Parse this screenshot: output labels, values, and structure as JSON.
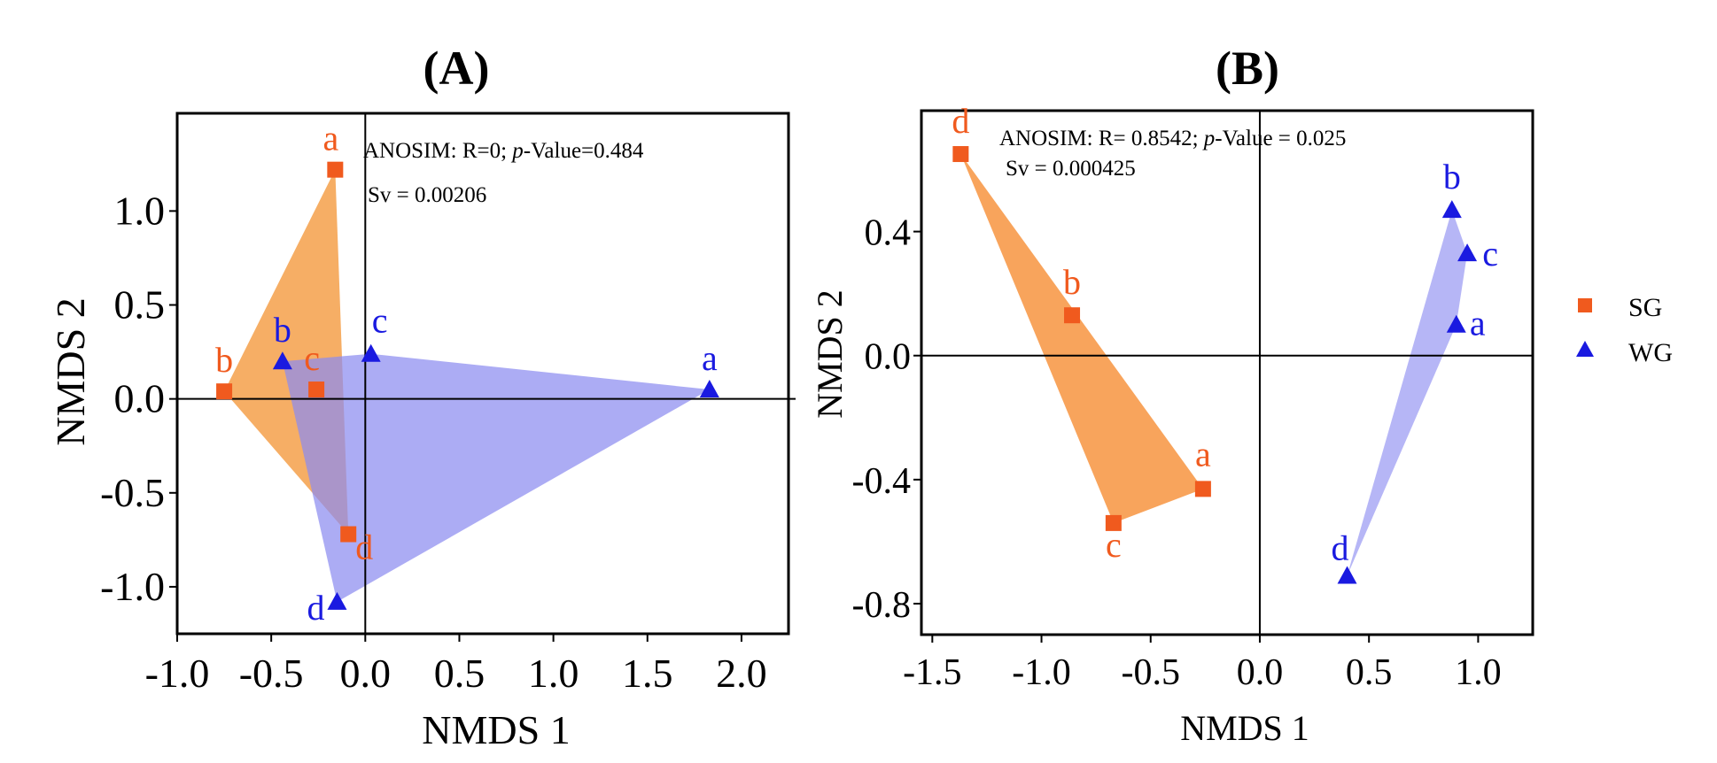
{
  "chart_data": [
    {
      "type": "scatter",
      "panel": "(A)",
      "xlabel": "NMDS 1",
      "ylabel": "NMDS 2",
      "xlim": [
        -1.0,
        2.25
      ],
      "ylim": [
        -1.25,
        1.52
      ],
      "xticks": [
        -1.0,
        -0.5,
        0.0,
        0.5,
        1.0,
        1.5,
        2.0
      ],
      "xtick_labels": [
        "-1.0",
        "-0.5",
        "0.0",
        "0.5",
        "1.0",
        "1.5",
        "2.0"
      ],
      "yticks": [
        1.0,
        0.5,
        0.0,
        -0.5,
        -1.0
      ],
      "ytick_labels": [
        "1.0",
        "0.5",
        "0.0",
        "-0.5",
        "-1.0"
      ],
      "annotation": {
        "prefix": "ANOSIM: R=0; ",
        "italic": "p",
        "suffix": "-Value=0.484"
      },
      "sv": "Sv = 0.00206",
      "series": [
        {
          "name": "SG",
          "marker": "square",
          "color": "#f05a1e",
          "fill": "#f5a04a",
          "points": [
            {
              "label": "a",
              "x": -0.16,
              "y": 1.22
            },
            {
              "label": "b",
              "x": -0.75,
              "y": 0.04
            },
            {
              "label": "c",
              "x": -0.26,
              "y": 0.05
            },
            {
              "label": "d",
              "x": -0.09,
              "y": -0.72
            }
          ]
        },
        {
          "name": "WG",
          "marker": "triangle",
          "color": "#1a1ae0",
          "fill": "#8c8cf0",
          "points": [
            {
              "label": "a",
              "x": 1.83,
              "y": 0.05
            },
            {
              "label": "b",
              "x": -0.44,
              "y": 0.2
            },
            {
              "label": "c",
              "x": 0.03,
              "y": 0.24
            },
            {
              "label": "d",
              "x": -0.15,
              "y": -1.08
            }
          ]
        }
      ]
    },
    {
      "type": "scatter",
      "panel": "(B)",
      "xlabel": "NMDS 1",
      "ylabel": "NMDS 2",
      "xlim": [
        -1.55,
        1.25
      ],
      "ylim": [
        -0.9,
        0.79
      ],
      "xticks": [
        -1.5,
        -1.0,
        -0.5,
        0.0,
        0.5,
        1.0
      ],
      "xtick_labels": [
        "-1.5",
        "-1.0",
        "-0.5",
        "0.0",
        "0.5",
        "1.0"
      ],
      "yticks": [
        0.4,
        0.0,
        -0.4,
        -0.8
      ],
      "ytick_labels": [
        "0.4",
        "0.0",
        "-0.4",
        "-0.8"
      ],
      "annotation": {
        "prefix": "ANOSIM: R= 0.8542; ",
        "italic": "p",
        "suffix": "-Value = 0.025"
      },
      "sv": "Sv = 0.000425",
      "series": [
        {
          "name": "SG",
          "marker": "square",
          "color": "#f05a1e",
          "fill": "#f79440",
          "points": [
            {
              "label": "a",
              "x": -0.26,
              "y": -0.43
            },
            {
              "label": "b",
              "x": -0.86,
              "y": 0.13
            },
            {
              "label": "c",
              "x": -0.67,
              "y": -0.54
            },
            {
              "label": "d",
              "x": -1.37,
              "y": 0.65
            }
          ]
        },
        {
          "name": "WG",
          "marker": "triangle",
          "color": "#1a1ae0",
          "fill": "#9a9af2",
          "points": [
            {
              "label": "a",
              "x": 0.9,
              "y": 0.1
            },
            {
              "label": "b",
              "x": 0.88,
              "y": 0.47
            },
            {
              "label": "c",
              "x": 0.95,
              "y": 0.33
            },
            {
              "label": "d",
              "x": 0.4,
              "y": -0.71
            }
          ]
        }
      ]
    }
  ],
  "legend": [
    {
      "label": "SG",
      "marker": "square",
      "color": "#f05a1e"
    },
    {
      "label": "WG",
      "marker": "triangle",
      "color": "#1a1ae0"
    }
  ]
}
